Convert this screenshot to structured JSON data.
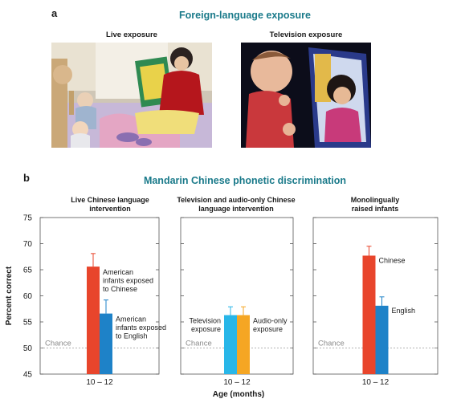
{
  "panel_a": {
    "letter": "a",
    "title": "Foreign-language exposure",
    "photos": [
      {
        "label": "Live exposure"
      },
      {
        "label": "Television exposure"
      }
    ]
  },
  "panel_b": {
    "letter": "b",
    "title": "Mandarin Chinese phonetic discrimination"
  },
  "chart_data": {
    "type": "bar",
    "ylabel": "Percent correct",
    "xlabel": "Age (months)",
    "ylim": [
      45,
      75
    ],
    "yticks": [
      "45",
      "50",
      "55",
      "60",
      "65",
      "70",
      "75"
    ],
    "chance_label": "Chance",
    "chance_value": 50,
    "colors": {
      "red": "#e8452c",
      "blue": "#1e82c8",
      "lightblue": "#28b6e8",
      "orange": "#f5a623"
    },
    "panels": [
      {
        "title": "Live Chinese language intervention",
        "category": "10 – 12",
        "bars": [
          {
            "name": "American infants exposed to Chinese",
            "value": 65.6,
            "error": 2.5,
            "color": "#e8452c",
            "label_side": "right"
          },
          {
            "name": "American infants exposed to English",
            "value": 56.6,
            "error": 2.6,
            "color": "#1e82c8",
            "label_side": "right"
          }
        ]
      },
      {
        "title": "Television and audio-only Chinese language intervention",
        "category": "10 – 12",
        "bars": [
          {
            "name": "Television exposure",
            "value": 56.3,
            "error": 1.6,
            "color": "#28b6e8",
            "label_side": "left"
          },
          {
            "name": "Audio-only exposure",
            "value": 56.3,
            "error": 1.6,
            "color": "#f5a623",
            "label_side": "right"
          }
        ]
      },
      {
        "title": "Monolingually raised infants",
        "category": "10 – 12",
        "bars": [
          {
            "name": "Chinese",
            "value": 67.7,
            "error": 1.8,
            "color": "#e8452c",
            "label_side": "right"
          },
          {
            "name": "English",
            "value": 58.1,
            "error": 1.7,
            "color": "#1e82c8",
            "label_side": "right"
          }
        ]
      }
    ]
  }
}
